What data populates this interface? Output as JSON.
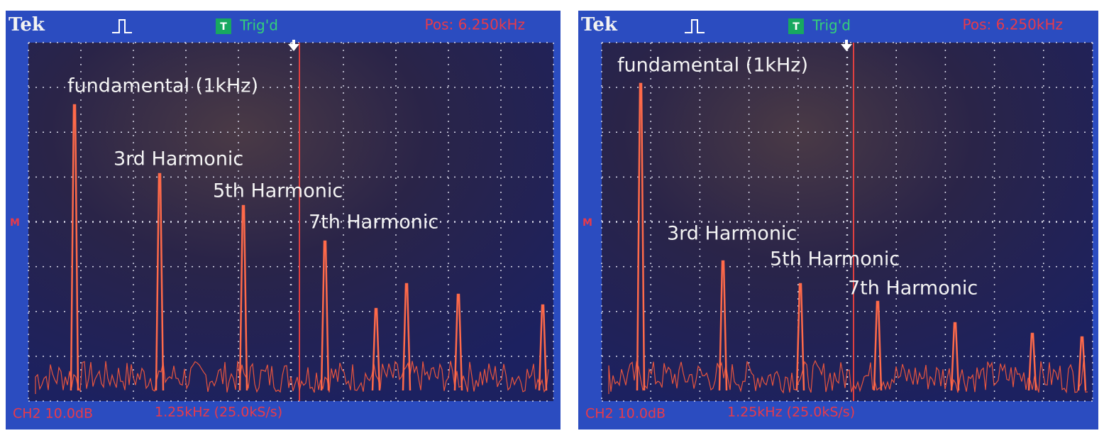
{
  "panels": [
    {
      "brand": "Tek",
      "trigger": "T",
      "status": "Trig'd",
      "position": "Pos: 6.250kHz",
      "marker": "M",
      "scale": "CH2 10.0dB",
      "timebase": "1.25kHz (25.0kS/s)",
      "labels": [
        "fundamental (1kHz)",
        "3rd Harmonic",
        "5th Harmonic",
        "7th Harmonic"
      ]
    },
    {
      "brand": "Tek",
      "trigger": "T",
      "status": "Trig'd",
      "position": "Pos: 6.250kHz",
      "marker": "M",
      "scale": "CH2 10.0dB",
      "timebase": "1.25kHz (25.0kS/s)",
      "labels": [
        "fundamental (1kHz)",
        "3rd Harmonic",
        "5th Harmonic",
        "7th Harmonic"
      ]
    }
  ]
}
